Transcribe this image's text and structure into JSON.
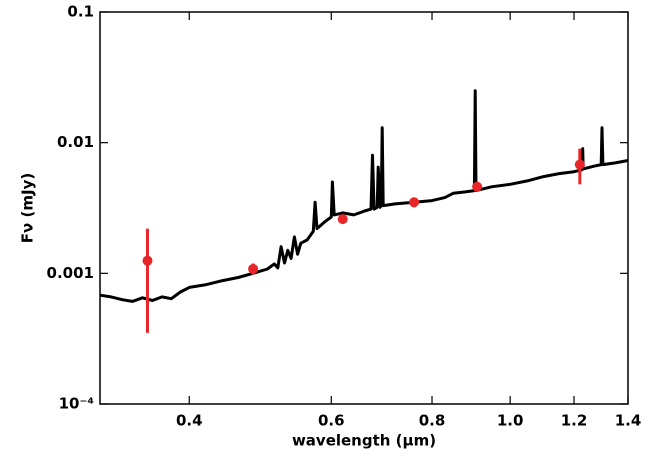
{
  "chart_data": {
    "type": "line",
    "xlabel": "wavelength (μm)",
    "ylabel": "Fν (mJy)",
    "xlog": true,
    "ylog": true,
    "xlim": [
      0.31,
      1.4
    ],
    "ylim": [
      0.0001,
      0.1
    ],
    "xticks": [
      0.4,
      0.6,
      0.8,
      {
        "value": 1,
        "label": "1.0"
      },
      1.2,
      1.4
    ],
    "yticks": [
      {
        "value": 0.0001,
        "label": "10⁻⁴"
      },
      0.001,
      0.01,
      0.1
    ],
    "spectrum": {
      "color": "#000000",
      "x": [
        0.31,
        0.32,
        0.33,
        0.34,
        0.35,
        0.36,
        0.37,
        0.38,
        0.39,
        0.4,
        0.42,
        0.44,
        0.46,
        0.48,
        0.5,
        0.51,
        0.515,
        0.52,
        0.525,
        0.53,
        0.535,
        0.54,
        0.545,
        0.55,
        0.56,
        0.57,
        0.573,
        0.576,
        0.59,
        0.6,
        0.602,
        0.605,
        0.62,
        0.64,
        0.66,
        0.672,
        0.675,
        0.678,
        0.684,
        0.686,
        0.69,
        0.692,
        0.694,
        0.696,
        0.72,
        0.76,
        0.8,
        0.83,
        0.85,
        0.88,
        0.903,
        0.905,
        0.907,
        0.95,
        1.0,
        1.05,
        1.1,
        1.15,
        1.2,
        1.228,
        1.23,
        1.232,
        1.27,
        1.297,
        1.3,
        1.303,
        1.35,
        1.4
      ],
      "values": [
        0.00068,
        0.00066,
        0.00063,
        0.00061,
        0.00065,
        0.00062,
        0.00066,
        0.00064,
        0.00072,
        0.00078,
        0.00082,
        0.00088,
        0.00093,
        0.001,
        0.00108,
        0.00118,
        0.0011,
        0.0016,
        0.0012,
        0.0015,
        0.0013,
        0.0019,
        0.0014,
        0.0017,
        0.0018,
        0.0021,
        0.0035,
        0.0022,
        0.0025,
        0.0027,
        0.005,
        0.0028,
        0.0029,
        0.0028,
        0.003,
        0.0031,
        0.008,
        0.0031,
        0.0032,
        0.0065,
        0.0032,
        0.0033,
        0.013,
        0.0033,
        0.0034,
        0.0035,
        0.0036,
        0.0038,
        0.0041,
        0.0042,
        0.0043,
        0.025,
        0.0043,
        0.0046,
        0.0048,
        0.0051,
        0.0055,
        0.0058,
        0.006,
        0.0062,
        0.009,
        0.0063,
        0.0066,
        0.0068,
        0.013,
        0.0068,
        0.007,
        0.0073
      ]
    },
    "photometry": {
      "color": "#e8262a",
      "x": [
        0.355,
        0.48,
        0.62,
        0.76,
        0.91,
        1.22
      ],
      "values": [
        0.00125,
        0.00108,
        0.0026,
        0.0035,
        0.0046,
        0.0068
      ],
      "lower": [
        0.00035,
        0.00098,
        0.0024,
        0.0032,
        0.0042,
        0.0048
      ],
      "upper": [
        0.0022,
        0.00119,
        0.0028,
        0.0038,
        0.005,
        0.009
      ]
    }
  }
}
